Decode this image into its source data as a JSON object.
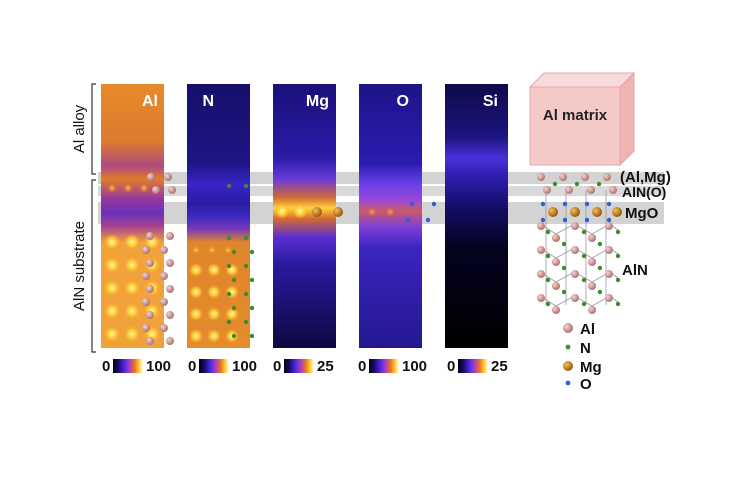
{
  "side_labels": {
    "alloy": "Al alloy",
    "substrate": "AlN substrate"
  },
  "panels": [
    {
      "element": "Al",
      "scale_min": "0",
      "scale_max": "100"
    },
    {
      "element": "N",
      "scale_min": "0",
      "scale_max": "100"
    },
    {
      "element": "Mg",
      "scale_min": "0",
      "scale_max": "25"
    },
    {
      "element": "O",
      "scale_min": "0",
      "scale_max": "100"
    },
    {
      "element": "Si",
      "scale_min": "0",
      "scale_max": "25"
    }
  ],
  "schematic": {
    "matrix_label": "Al matrix",
    "layer_labels": [
      "(Al,Mg)",
      "AlN(O)",
      "MgO",
      "AlN"
    ],
    "legend": [
      {
        "label": "Al",
        "color": "#c98f8f"
      },
      {
        "label": "N",
        "color": "#3f8a2e"
      },
      {
        "label": "Mg",
        "color": "#c07a14"
      },
      {
        "label": "O",
        "color": "#2f5fd8"
      }
    ]
  },
  "colors": {
    "colormap": [
      "#000000",
      "#1a0a6e",
      "#4b2be0",
      "#a83cc8",
      "#e8741e",
      "#ffd23a",
      "#ffffff"
    ],
    "band": "#d3d3d3",
    "matrix_front": "#f6c9c9",
    "matrix_top": "#f9dada",
    "matrix_side": "#eeb3b3"
  }
}
